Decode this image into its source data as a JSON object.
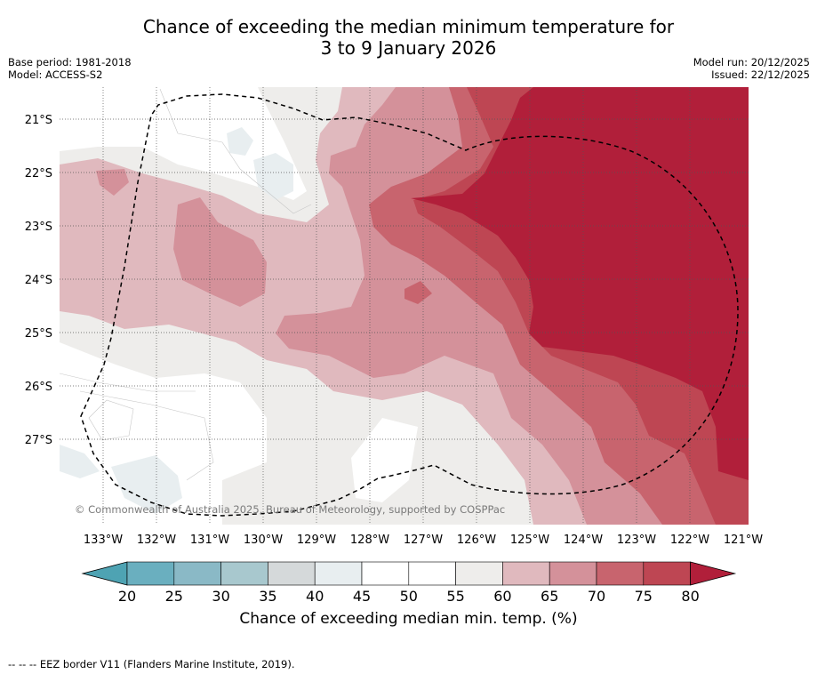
{
  "title": {
    "line1": "Chance of exceeding the median minimum temperature for",
    "line2": "3 to 9 January 2026"
  },
  "meta_left": {
    "base_period": "Base period: 1981-2018",
    "model": "Model: ACCESS-S2"
  },
  "meta_right": {
    "model_run": "Model run: 20/12/2025",
    "issued": "Issued: 22/12/2025"
  },
  "map": {
    "lat_labels": [
      "21°S",
      "22°S",
      "23°S",
      "24°S",
      "25°S",
      "26°S",
      "27°S"
    ],
    "lon_labels": [
      "133°W",
      "132°W",
      "131°W",
      "130°W",
      "129°W",
      "128°W",
      "127°W",
      "126°W",
      "125°W",
      "124°W",
      "123°W",
      "122°W",
      "121°W"
    ],
    "copyright": "© Commonwealth of Australia 2025, Bureau of Meteorology, supported by COSPPac"
  },
  "colorbar": {
    "ticks": [
      "20",
      "25",
      "30",
      "35",
      "40",
      "45",
      "50",
      "55",
      "60",
      "65",
      "70",
      "75",
      "80"
    ],
    "colors": [
      "#6aafbf",
      "#8ab9c6",
      "#a8c8ce",
      "#d5d9da",
      "#e8eef0",
      "#ffffff",
      "#ffffff",
      "#eeedeb",
      "#e0b9be",
      "#d4919a",
      "#c8646e",
      "#be4653"
    ],
    "under_color": "#4ea3b3",
    "over_color": "#b11f3a",
    "label": "Chance of exceeding median min. temp. (%)"
  },
  "footer": {
    "legend_text": "--  --  -- EEZ border V11 (Flanders Marine Institute, 2019)."
  }
}
